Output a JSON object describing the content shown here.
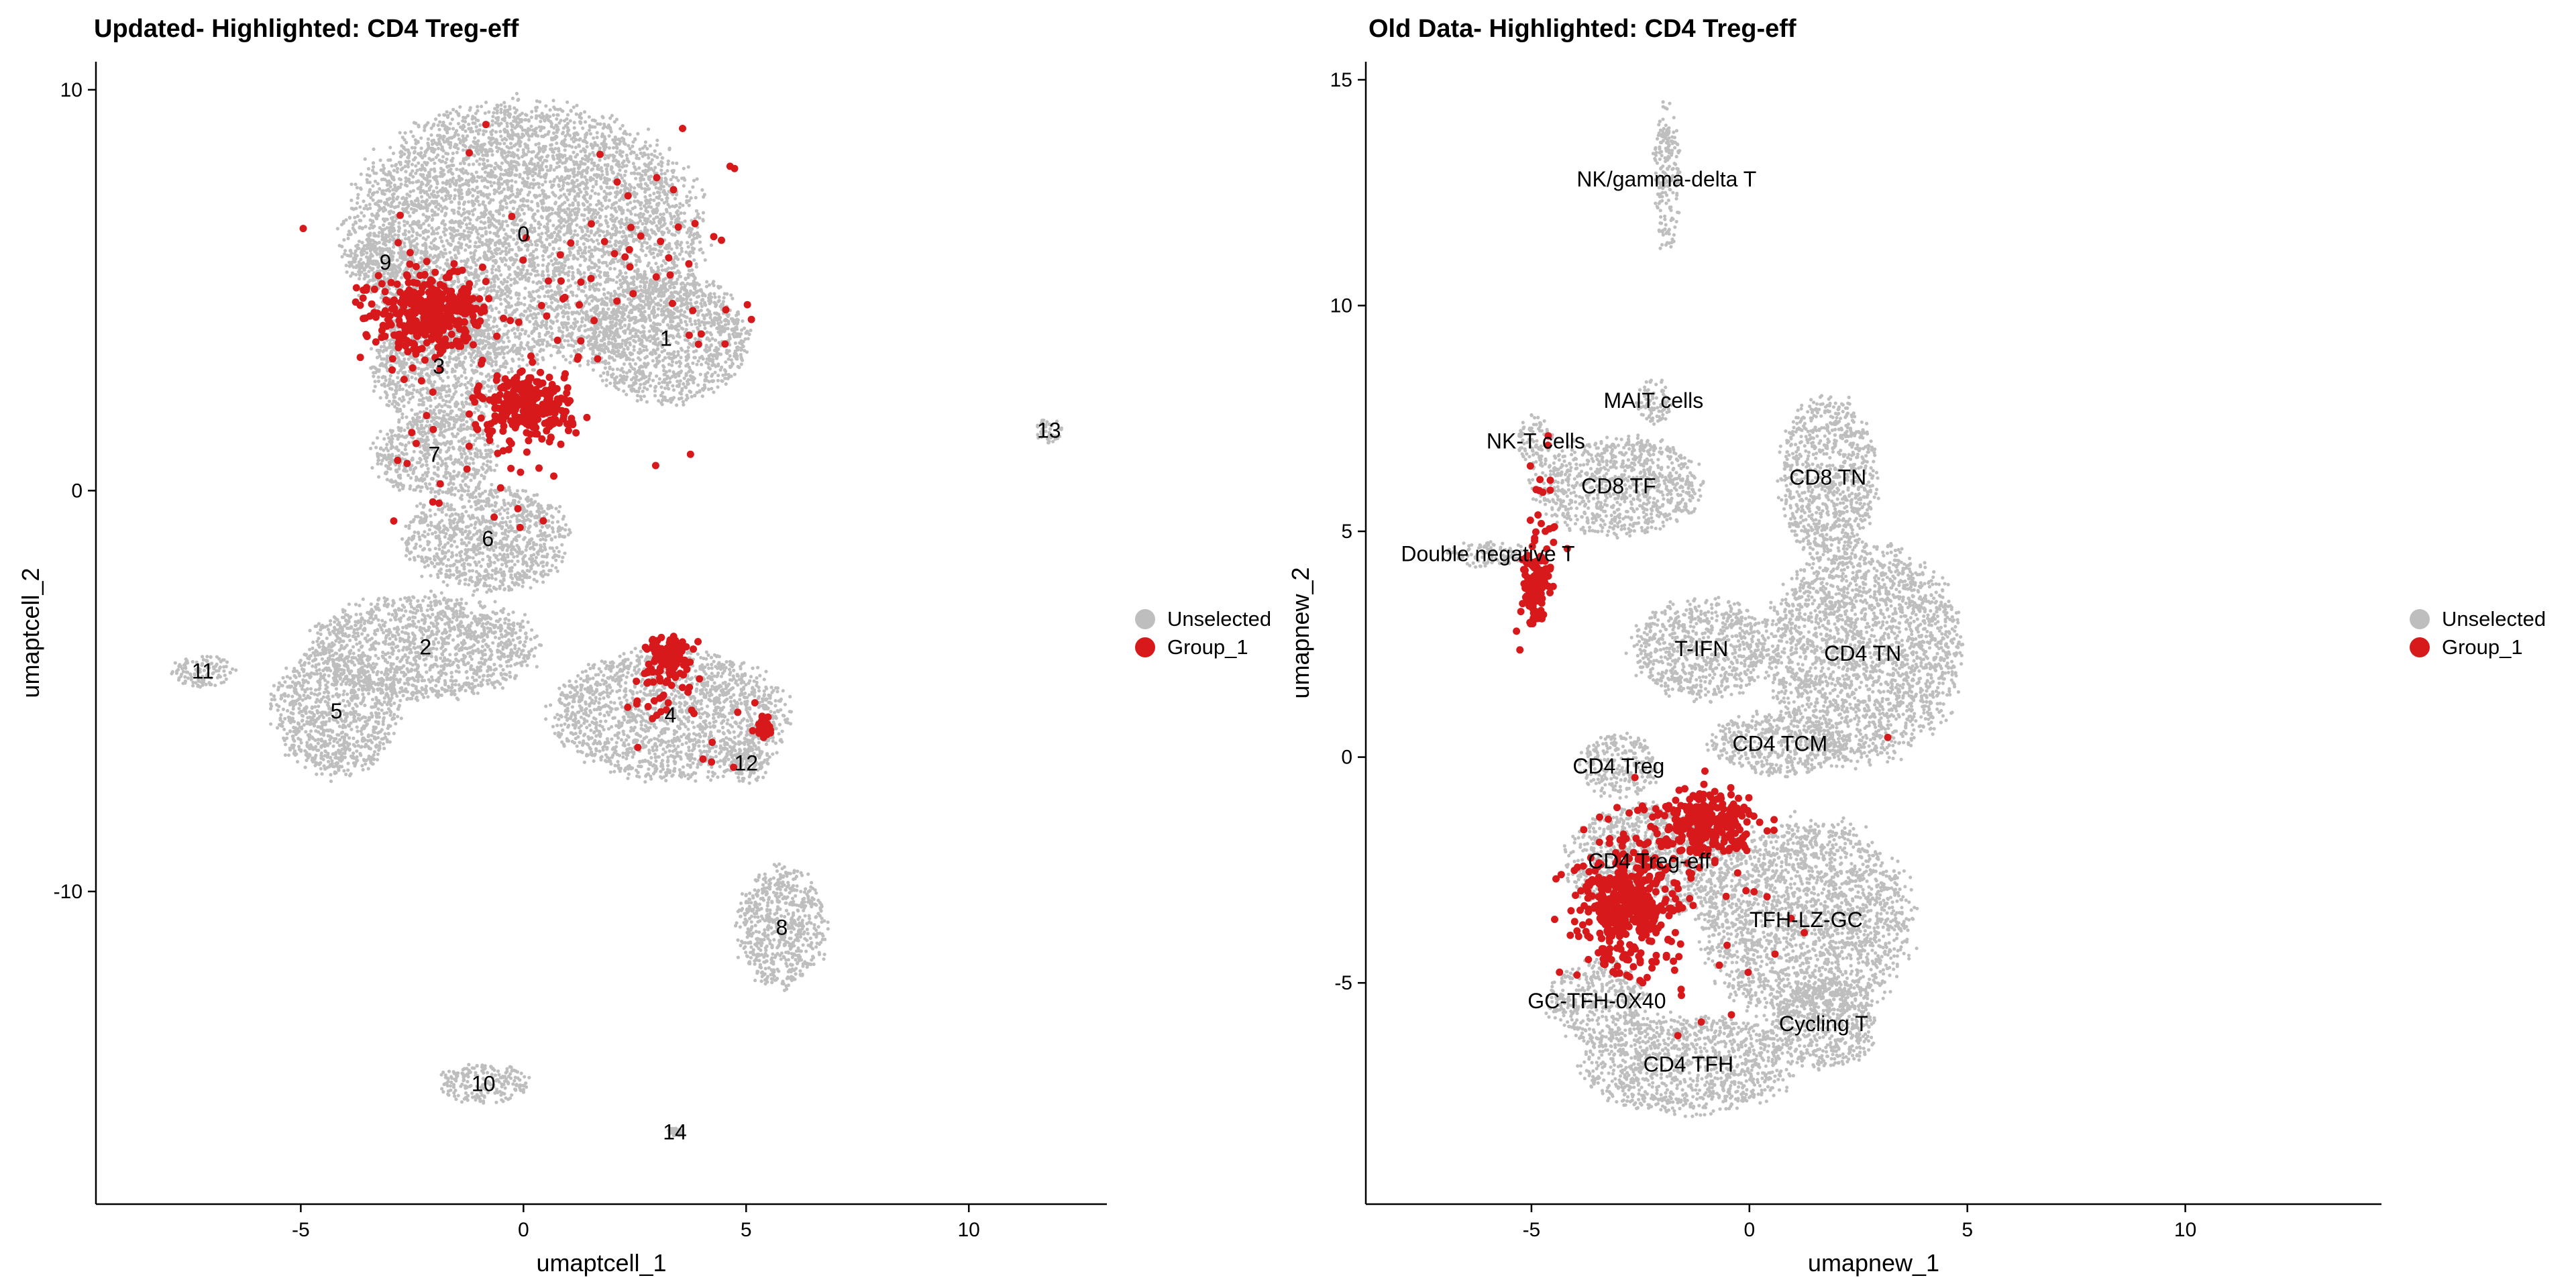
{
  "colors": {
    "unselected": "#BEBEBE",
    "group": "#D7191C"
  },
  "legend": {
    "items": [
      {
        "label": "Unselected",
        "color": "#BEBEBE"
      },
      {
        "label": "Group_1",
        "color": "#D7191C"
      }
    ]
  },
  "chart_data": [
    {
      "type": "scatter",
      "title": "Updated- Highlighted: CD4 Treg-eff",
      "xlabel": "umaptcell_1",
      "ylabel": "umaptcell_2",
      "xlim": [
        -9.6,
        13.1
      ],
      "ylim": [
        -17.8,
        10.7
      ],
      "xticks": [
        -5,
        0,
        5,
        10
      ],
      "xtick_labels": [
        "-5",
        "0",
        "5",
        "10"
      ],
      "yticks": [
        -10,
        0,
        10
      ],
      "ytick_labels": [
        "-10",
        "0",
        "10"
      ],
      "legend_position": "right",
      "grid": false,
      "clusters": [
        {
          "name": "0",
          "x": 0,
          "y": 6.4,
          "r": [
            3.9,
            3.2
          ]
        },
        {
          "name": "1",
          "x": 3.2,
          "y": 3.8,
          "r": [
            1.8,
            1.6
          ]
        },
        {
          "name": "2",
          "x": -2.2,
          "y": -3.9,
          "r": [
            2.5,
            1.3
          ]
        },
        {
          "name": "3",
          "x": -1.9,
          "y": 3.1,
          "r": [
            1.5,
            1.5
          ]
        },
        {
          "name": "4",
          "x": 3.3,
          "y": -5.6,
          "r": [
            2.6,
            1.6
          ]
        },
        {
          "name": "5",
          "x": -4.2,
          "y": -5.5,
          "r": [
            1.4,
            1.6
          ]
        },
        {
          "name": "6",
          "x": -0.8,
          "y": -1.2,
          "r": [
            1.8,
            1.3
          ]
        },
        {
          "name": "7",
          "x": -2.0,
          "y": 0.9,
          "r": [
            1.4,
            1.0
          ]
        },
        {
          "name": "8",
          "x": 5.8,
          "y": -10.9,
          "r": [
            1.0,
            1.5
          ]
        },
        {
          "name": "9",
          "x": -3.1,
          "y": 5.7,
          "r": [
            0.9,
            0.6
          ]
        },
        {
          "name": "10",
          "x": -0.9,
          "y": -14.8,
          "r": [
            1.0,
            0.5
          ]
        },
        {
          "name": "11",
          "x": -7.2,
          "y": -4.5,
          "r": [
            0.7,
            0.4
          ]
        },
        {
          "name": "12",
          "x": 5.0,
          "y": -6.8,
          "r": [
            0.5,
            0.5
          ]
        },
        {
          "name": "13",
          "x": 11.8,
          "y": 1.5,
          "r": [
            0.3,
            0.3
          ]
        },
        {
          "name": "14",
          "x": 3.4,
          "y": -16.0,
          "r": [
            0.15,
            0.1
          ]
        }
      ],
      "highlighted": [
        {
          "x": -2.1,
          "y": 4.4,
          "r": [
            1.1,
            0.9
          ],
          "count": 360
        },
        {
          "x": 0.1,
          "y": 2.1,
          "r": [
            0.9,
            0.8
          ],
          "count": 260
        },
        {
          "x": 3.3,
          "y": -4.2,
          "r": [
            0.45,
            0.55
          ],
          "count": 110
        },
        {
          "x": 5.4,
          "y": -5.9,
          "r": [
            0.15,
            0.25
          ],
          "count": 30
        },
        {
          "x": 1.0,
          "y": 5.5,
          "r": [
            4.5,
            3.0
          ],
          "count": 80
        },
        {
          "x": -1.0,
          "y": 0.5,
          "r": [
            2.0,
            1.6
          ],
          "count": 30
        },
        {
          "x": 3.6,
          "y": -5.5,
          "r": [
            1.3,
            1.1
          ],
          "count": 30
        }
      ]
    },
    {
      "type": "scatter",
      "title": "Old Data- Highlighted: CD4 Treg-eff",
      "xlabel": "umapnew_1",
      "ylabel": "umapnew_2",
      "xlim": [
        -8.8,
        14.5
      ],
      "ylim": [
        -9.9,
        15.4
      ],
      "xticks": [
        -5,
        0,
        5,
        10
      ],
      "xtick_labels": [
        "-5",
        "0",
        "5",
        "10"
      ],
      "yticks": [
        -5,
        0,
        5,
        10,
        15
      ],
      "ytick_labels": [
        "-5",
        "0",
        "5",
        "10",
        "15"
      ],
      "legend_position": "right",
      "grid": false,
      "clusters": [
        {
          "name": "NK/gamma-delta T",
          "x": -1.9,
          "y": 12.8,
          "r": [
            0.3,
            1.7
          ]
        },
        {
          "name": "MAIT cells",
          "x": -2.2,
          "y": 7.9,
          "r": [
            0.4,
            0.5
          ]
        },
        {
          "name": "NK-T cells",
          "x": -4.9,
          "y": 7.0,
          "r": [
            0.4,
            0.6
          ]
        },
        {
          "name": "CD8 TF",
          "x": -3.0,
          "y": 6.0,
          "r": [
            1.9,
            1.1
          ]
        },
        {
          "name": "CD8 TN",
          "x": 1.8,
          "y": 6.2,
          "r": [
            1.1,
            1.8
          ]
        },
        {
          "name": "Double negative T",
          "x": -6.0,
          "y": 4.5,
          "r": [
            0.9,
            0.3
          ]
        },
        {
          "name": "T-IFN",
          "x": -1.1,
          "y": 2.4,
          "r": [
            1.6,
            1.1
          ]
        },
        {
          "name": "CD4 TN",
          "x": 2.6,
          "y": 2.3,
          "r": [
            2.2,
            2.4
          ]
        },
        {
          "name": "CD4 TCM",
          "x": 0.7,
          "y": 0.3,
          "r": [
            1.6,
            0.7
          ]
        },
        {
          "name": "CD4 Treg",
          "x": -3.0,
          "y": -0.2,
          "r": [
            0.9,
            0.7
          ]
        },
        {
          "name": "CD4 Treg-eff",
          "x": -2.3,
          "y": -2.3,
          "r": [
            1.9,
            1.2
          ]
        },
        {
          "name": "TFH-LZ-GC",
          "x": 1.3,
          "y": -3.6,
          "r": [
            2.4,
            2.2
          ]
        },
        {
          "name": "GC-TFH-0X40",
          "x": -3.5,
          "y": -5.4,
          "r": [
            1.1,
            0.9
          ]
        },
        {
          "name": "Cycling T",
          "x": 1.7,
          "y": -5.9,
          "r": [
            1.2,
            1.0
          ]
        },
        {
          "name": "CD4 TFH",
          "x": -1.4,
          "y": -6.8,
          "r": [
            2.4,
            1.1
          ]
        }
      ],
      "highlighted": [
        {
          "x": -2.8,
          "y": -3.3,
          "r": [
            1.0,
            1.3
          ],
          "count": 420
        },
        {
          "x": -1.0,
          "y": -1.5,
          "r": [
            1.0,
            0.6
          ],
          "count": 260
        },
        {
          "x": -4.9,
          "y": 3.8,
          "r": [
            0.28,
            0.8
          ],
          "count": 140
        },
        {
          "x": -1.5,
          "y": -3.0,
          "r": [
            2.8,
            2.6
          ],
          "count": 50
        },
        {
          "x": -4.7,
          "y": 5.4,
          "r": [
            0.3,
            1.6
          ],
          "count": 20
        }
      ]
    }
  ]
}
